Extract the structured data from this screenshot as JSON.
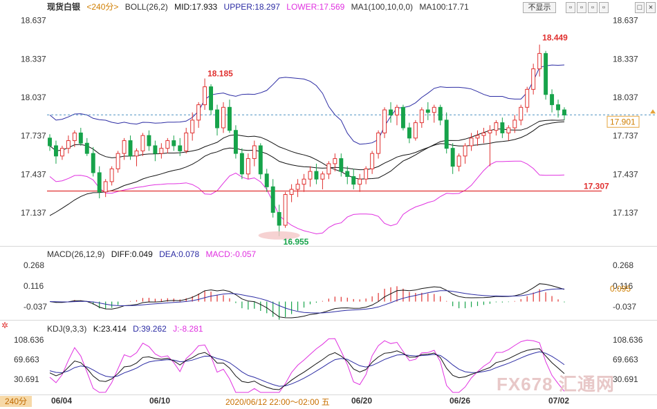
{
  "header": {
    "instrument": "现货白银",
    "period": "<240分>",
    "boll": "BOLL(26,2)",
    "mid": "MID:17.933",
    "upper": "UPPER:18.297",
    "lower": "LOWER:17.569",
    "ma1": "MA1(100,10,0,0)",
    "ma100": "MA100:17.71",
    "hide_btn": "不显示",
    "window_buttons": [
      "▫",
      "▫",
      "▫",
      "▫",
      "□",
      "×"
    ]
  },
  "macd_header": {
    "title": "MACD(26,12,9)",
    "diff": "DIFF:0.049",
    "dea": "DEA:0.078",
    "macd": "MACD:-0.057"
  },
  "kdj_header": {
    "title": "KDJ(9,3,3)",
    "k": "K:23.414",
    "d": "D:39.262",
    "j": "J:-8.281"
  },
  "period_tag": "240分",
  "hover_time": "2020/06/12 22:00～02:00 五",
  "watermark": "FX678 汇通网",
  "colors": {
    "up": "#e0302f",
    "down": "#16a34a",
    "boll": "#2b2ba3",
    "lower": "#e030e0",
    "ma": "#111111",
    "support": "#e03030"
  },
  "chart_data": [
    {
      "type": "candlestick",
      "title": "现货白银 240分",
      "ylim": [
        16.9,
        18.7
      ],
      "y_ticks": [
        "18.637",
        "18.337",
        "18.037",
        "17.737",
        "17.437",
        "17.137"
      ],
      "x_ticks": [
        "06/04",
        "06/10",
        "06/20",
        "06/26",
        "07/02"
      ],
      "annotations": {
        "high_1": "18.185",
        "high_2": "18.449",
        "low": "16.955",
        "support": "17.307",
        "last_price": "17.901"
      },
      "support_value": 17.307,
      "last_value": 17.901,
      "candles": [
        [
          17.72,
          17.75,
          17.62,
          17.66
        ],
        [
          17.66,
          17.7,
          17.52,
          17.58
        ],
        [
          17.58,
          17.66,
          17.55,
          17.64
        ],
        [
          17.64,
          17.74,
          17.6,
          17.7
        ],
        [
          17.7,
          17.78,
          17.65,
          17.76
        ],
        [
          17.76,
          17.8,
          17.66,
          17.68
        ],
        [
          17.68,
          17.72,
          17.58,
          17.6
        ],
        [
          17.6,
          17.65,
          17.42,
          17.45
        ],
        [
          17.45,
          17.5,
          17.25,
          17.3
        ],
        [
          17.3,
          17.4,
          17.26,
          17.38
        ],
        [
          17.38,
          17.5,
          17.35,
          17.48
        ],
        [
          17.48,
          17.62,
          17.45,
          17.6
        ],
        [
          17.6,
          17.72,
          17.55,
          17.7
        ],
        [
          17.7,
          17.74,
          17.55,
          17.58
        ],
        [
          17.58,
          17.64,
          17.5,
          17.62
        ],
        [
          17.62,
          17.76,
          17.58,
          17.74
        ],
        [
          17.74,
          17.78,
          17.62,
          17.66
        ],
        [
          17.66,
          17.7,
          17.54,
          17.6
        ],
        [
          17.6,
          17.68,
          17.56,
          17.64
        ],
        [
          17.64,
          17.72,
          17.6,
          17.7
        ],
        [
          17.7,
          17.74,
          17.62,
          17.66
        ],
        [
          17.66,
          17.72,
          17.58,
          17.62
        ],
        [
          17.62,
          17.8,
          17.6,
          17.76
        ],
        [
          17.76,
          17.92,
          17.7,
          17.86
        ],
        [
          17.86,
          18.0,
          17.8,
          17.98
        ],
        [
          17.98,
          18.185,
          17.94,
          18.12
        ],
        [
          18.12,
          18.14,
          17.9,
          17.94
        ],
        [
          17.94,
          17.98,
          17.74,
          17.8
        ],
        [
          17.8,
          18.0,
          17.76,
          17.96
        ],
        [
          17.96,
          18.02,
          17.76,
          17.78
        ],
        [
          17.78,
          17.82,
          17.56,
          17.6
        ],
        [
          17.6,
          17.64,
          17.4,
          17.44
        ],
        [
          17.44,
          17.6,
          17.4,
          17.56
        ],
        [
          17.56,
          17.7,
          17.5,
          17.66
        ],
        [
          17.66,
          17.68,
          17.4,
          17.44
        ],
        [
          17.44,
          17.48,
          17.3,
          17.34
        ],
        [
          17.34,
          17.4,
          17.1,
          17.14
        ],
        [
          17.14,
          17.2,
          16.955,
          17.04
        ],
        [
          17.04,
          17.3,
          17.02,
          17.28
        ],
        [
          17.28,
          17.36,
          17.22,
          17.32
        ],
        [
          17.32,
          17.4,
          17.26,
          17.36
        ],
        [
          17.36,
          17.44,
          17.3,
          17.4
        ],
        [
          17.4,
          17.5,
          17.34,
          17.46
        ],
        [
          17.46,
          17.52,
          17.36,
          17.4
        ],
        [
          17.4,
          17.46,
          17.32,
          17.44
        ],
        [
          17.44,
          17.54,
          17.4,
          17.52
        ],
        [
          17.52,
          17.6,
          17.46,
          17.56
        ],
        [
          17.56,
          17.6,
          17.42,
          17.46
        ],
        [
          17.46,
          17.5,
          17.36,
          17.42
        ],
        [
          17.42,
          17.48,
          17.32,
          17.36
        ],
        [
          17.36,
          17.44,
          17.3,
          17.4
        ],
        [
          17.4,
          17.5,
          17.36,
          17.48
        ],
        [
          17.48,
          17.62,
          17.44,
          17.6
        ],
        [
          17.6,
          17.78,
          17.56,
          17.76
        ],
        [
          17.76,
          17.96,
          17.72,
          17.94
        ],
        [
          17.94,
          18.0,
          17.84,
          17.9
        ],
        [
          17.9,
          17.98,
          17.82,
          17.96
        ],
        [
          17.96,
          17.98,
          17.78,
          17.8
        ],
        [
          17.8,
          17.84,
          17.68,
          17.72
        ],
        [
          17.72,
          17.86,
          17.7,
          17.84
        ],
        [
          17.84,
          17.96,
          17.8,
          17.94
        ],
        [
          17.94,
          18.0,
          17.86,
          17.92
        ],
        [
          17.92,
          17.98,
          17.84,
          17.96
        ],
        [
          17.96,
          17.98,
          17.82,
          17.86
        ],
        [
          17.86,
          17.92,
          17.6,
          17.64
        ],
        [
          17.64,
          17.68,
          17.44,
          17.5
        ],
        [
          17.5,
          17.6,
          17.46,
          17.58
        ],
        [
          17.58,
          17.68,
          17.52,
          17.66
        ],
        [
          17.66,
          17.76,
          17.62,
          17.72
        ],
        [
          17.72,
          17.78,
          17.66,
          17.74
        ],
        [
          17.74,
          17.8,
          17.68,
          17.76
        ],
        [
          17.76,
          17.82,
          17.5,
          17.78
        ],
        [
          17.78,
          17.86,
          17.74,
          17.84
        ],
        [
          17.84,
          17.88,
          17.72,
          17.76
        ],
        [
          17.76,
          17.82,
          17.7,
          17.8
        ],
        [
          17.8,
          17.9,
          17.76,
          17.86
        ],
        [
          17.86,
          17.98,
          17.82,
          17.96
        ],
        [
          17.96,
          18.12,
          17.92,
          18.1
        ],
        [
          18.1,
          18.3,
          18.06,
          18.26
        ],
        [
          18.26,
          18.449,
          18.2,
          18.38
        ],
        [
          18.38,
          18.4,
          18.02,
          18.06
        ],
        [
          18.06,
          18.1,
          17.92,
          17.98
        ],
        [
          17.98,
          18.02,
          17.88,
          17.94
        ],
        [
          17.94,
          17.96,
          17.86,
          17.9
        ]
      ],
      "macd_ylim": [
        -0.12,
        0.33
      ],
      "macd_ticks": [
        "0.268",
        "0.116",
        "-0.037"
      ],
      "macd_last": "0.095",
      "kdj_ylim": [
        5,
        125
      ],
      "kdj_ticks": [
        "108.636",
        "69.663",
        "30.691"
      ]
    }
  ]
}
